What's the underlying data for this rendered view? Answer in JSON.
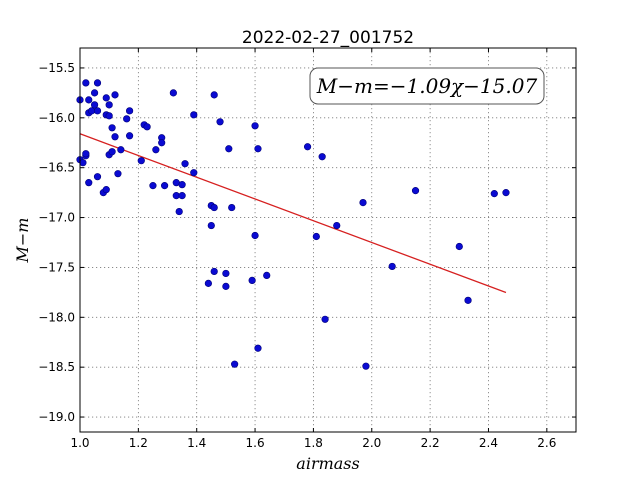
{
  "chart_data": {
    "type": "scatter",
    "title": "2022-02-27_001752",
    "xlabel": "airmass",
    "ylabel": "M−m",
    "xlim": [
      1.0,
      2.7
    ],
    "ylim": [
      -15.3,
      -19.15
    ],
    "y_inverted": true,
    "grid": true,
    "x_ticks": [
      "1.0",
      "1.2",
      "1.4",
      "1.6",
      "1.8",
      "2.0",
      "2.2",
      "2.4",
      "2.6"
    ],
    "y_ticks": [
      "−15.5",
      "−16.0",
      "−16.5",
      "−17.0",
      "−17.5",
      "−18.0",
      "−18.5",
      "−19.0"
    ],
    "annotation": "M−m=−1.09χ−15.07",
    "fit": {
      "slope": -1.09,
      "intercept": -15.07,
      "x_range": [
        1.0,
        2.46
      ],
      "color": "#d62020"
    },
    "marker_color": "#0a0ad2",
    "points": [
      {
        "x": 1.0,
        "y": -15.82
      },
      {
        "x": 1.0,
        "y": -16.42
      },
      {
        "x": 1.01,
        "y": -16.45
      },
      {
        "x": 1.02,
        "y": -15.65
      },
      {
        "x": 1.02,
        "y": -16.38
      },
      {
        "x": 1.02,
        "y": -16.36
      },
      {
        "x": 1.03,
        "y": -15.95
      },
      {
        "x": 1.03,
        "y": -15.82
      },
      {
        "x": 1.03,
        "y": -16.65
      },
      {
        "x": 1.04,
        "y": -15.93
      },
      {
        "x": 1.05,
        "y": -15.87
      },
      {
        "x": 1.05,
        "y": -15.75
      },
      {
        "x": 1.06,
        "y": -15.93
      },
      {
        "x": 1.06,
        "y": -15.65
      },
      {
        "x": 1.06,
        "y": -16.59
      },
      {
        "x": 1.08,
        "y": -16.75
      },
      {
        "x": 1.09,
        "y": -16.72
      },
      {
        "x": 1.09,
        "y": -15.8
      },
      {
        "x": 1.09,
        "y": -15.97
      },
      {
        "x": 1.1,
        "y": -15.87
      },
      {
        "x": 1.1,
        "y": -15.98
      },
      {
        "x": 1.1,
        "y": -16.37
      },
      {
        "x": 1.11,
        "y": -16.34
      },
      {
        "x": 1.11,
        "y": -16.1
      },
      {
        "x": 1.12,
        "y": -16.19
      },
      {
        "x": 1.12,
        "y": -15.77
      },
      {
        "x": 1.13,
        "y": -16.56
      },
      {
        "x": 1.14,
        "y": -16.32
      },
      {
        "x": 1.16,
        "y": -16.01
      },
      {
        "x": 1.17,
        "y": -15.93
      },
      {
        "x": 1.17,
        "y": -16.18
      },
      {
        "x": 1.21,
        "y": -16.43
      },
      {
        "x": 1.22,
        "y": -16.07
      },
      {
        "x": 1.23,
        "y": -16.09
      },
      {
        "x": 1.25,
        "y": -16.68
      },
      {
        "x": 1.26,
        "y": -16.32
      },
      {
        "x": 1.28,
        "y": -16.2
      },
      {
        "x": 1.28,
        "y": -16.25
      },
      {
        "x": 1.29,
        "y": -16.68
      },
      {
        "x": 1.32,
        "y": -15.75
      },
      {
        "x": 1.33,
        "y": -16.78
      },
      {
        "x": 1.33,
        "y": -16.65
      },
      {
        "x": 1.34,
        "y": -16.94
      },
      {
        "x": 1.35,
        "y": -16.67
      },
      {
        "x": 1.35,
        "y": -16.78
      },
      {
        "x": 1.36,
        "y": -16.46
      },
      {
        "x": 1.39,
        "y": -16.55
      },
      {
        "x": 1.39,
        "y": -15.97
      },
      {
        "x": 1.44,
        "y": -17.66
      },
      {
        "x": 1.45,
        "y": -16.88
      },
      {
        "x": 1.45,
        "y": -17.08
      },
      {
        "x": 1.46,
        "y": -16.9
      },
      {
        "x": 1.46,
        "y": -17.54
      },
      {
        "x": 1.46,
        "y": -15.77
      },
      {
        "x": 1.48,
        "y": -16.04
      },
      {
        "x": 1.5,
        "y": -17.56
      },
      {
        "x": 1.5,
        "y": -17.69
      },
      {
        "x": 1.51,
        "y": -16.31
      },
      {
        "x": 1.52,
        "y": -16.9
      },
      {
        "x": 1.53,
        "y": -18.47
      },
      {
        "x": 1.59,
        "y": -17.63
      },
      {
        "x": 1.6,
        "y": -17.18
      },
      {
        "x": 1.6,
        "y": -16.08
      },
      {
        "x": 1.61,
        "y": -16.31
      },
      {
        "x": 1.61,
        "y": -18.31
      },
      {
        "x": 1.64,
        "y": -17.58
      },
      {
        "x": 1.78,
        "y": -16.29
      },
      {
        "x": 1.81,
        "y": -17.19
      },
      {
        "x": 1.83,
        "y": -16.39
      },
      {
        "x": 1.84,
        "y": -18.02
      },
      {
        "x": 1.88,
        "y": -17.08
      },
      {
        "x": 1.97,
        "y": -16.85
      },
      {
        "x": 1.98,
        "y": -18.49
      },
      {
        "x": 2.07,
        "y": -17.49
      },
      {
        "x": 2.15,
        "y": -16.73
      },
      {
        "x": 2.3,
        "y": -17.29
      },
      {
        "x": 2.33,
        "y": -17.83
      },
      {
        "x": 2.42,
        "y": -16.76
      },
      {
        "x": 2.46,
        "y": -16.75
      }
    ]
  }
}
